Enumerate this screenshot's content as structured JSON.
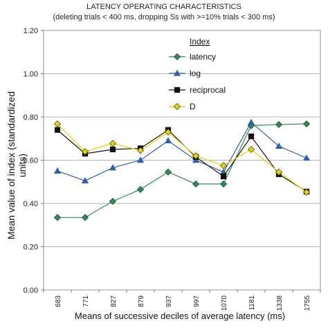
{
  "chart_data": {
    "type": "line",
    "title": "LATENCY OPERATING CHARACTERISTICS",
    "subtitle": "(deleting trials < 400 ms, dropping Ss with >=10% trials < 300 ms)",
    "xlabel": "Means of successive deciles of average latency (ms)",
    "ylabel": "Mean value of index (standardized units)",
    "categories": [
      "683",
      "771",
      "827",
      "879",
      "937",
      "997",
      "1070",
      "1181",
      "1338",
      "1755"
    ],
    "ylim": [
      0,
      1.2
    ],
    "yticks": [
      "0.00",
      "0.20",
      "0.40",
      "0.60",
      "0.80",
      "1.00",
      "1.20"
    ],
    "grid": true,
    "legend": {
      "title": "Index",
      "placement": "upper-right inside plot"
    },
    "series": [
      {
        "name": "latency",
        "color": "#2e8b57",
        "marker": "diamond",
        "values": [
          0.335,
          0.335,
          0.41,
          0.465,
          0.545,
          0.49,
          0.49,
          0.76,
          0.765,
          0.768
        ]
      },
      {
        "name": "log",
        "color": "#2f5fa8",
        "marker": "triangle",
        "values": [
          0.55,
          0.505,
          0.565,
          0.6,
          0.69,
          0.6,
          0.545,
          0.775,
          0.665,
          0.61
        ]
      },
      {
        "name": "reciprocal",
        "color": "#111111",
        "marker": "square",
        "values": [
          0.74,
          0.63,
          0.65,
          0.655,
          0.74,
          0.615,
          0.525,
          0.71,
          0.535,
          0.455
        ]
      },
      {
        "name": "D",
        "color": "#e6d200",
        "marker": "diamond",
        "values": [
          0.768,
          0.64,
          0.678,
          0.645,
          0.73,
          0.62,
          0.575,
          0.65,
          0.545,
          0.452
        ]
      }
    ]
  }
}
